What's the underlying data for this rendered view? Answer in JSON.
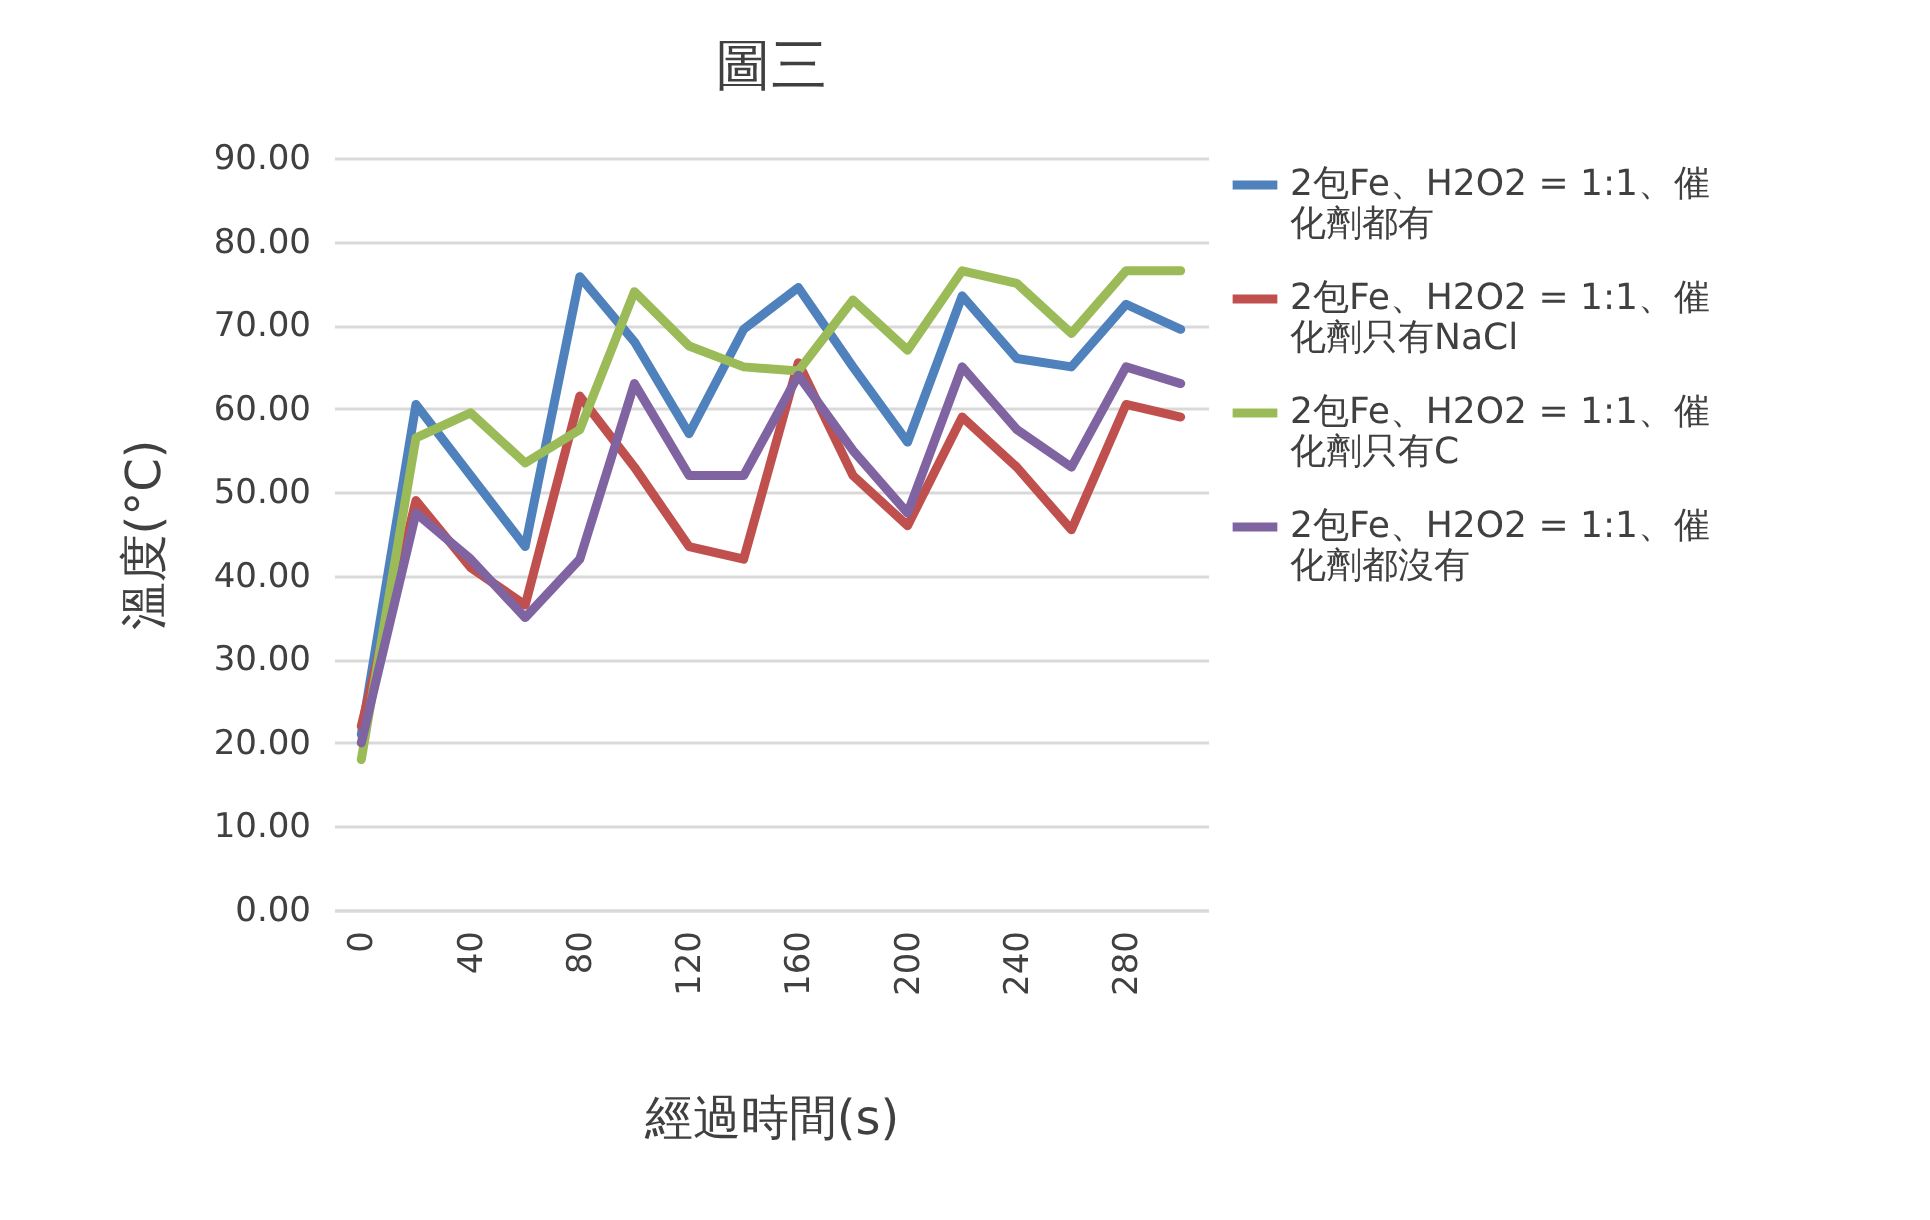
{
  "chart_data": {
    "type": "line",
    "title": "圖三",
    "xlabel": "經過時間(s)",
    "ylabel": "溫度(°C)",
    "categories": [
      "0",
      null,
      "40",
      null,
      "80",
      null,
      "120",
      null,
      "160",
      null,
      "200",
      null,
      "240",
      null,
      "280",
      null
    ],
    "series": [
      {
        "name": "2包Fe、H2O2 = 1:1、催化劑都有",
        "color": "#4f81bd",
        "values": [
          21,
          60.5,
          52,
          43.5,
          75.8,
          68,
          57,
          69.5,
          74.5,
          65,
          56,
          73.5,
          66,
          65,
          72.5,
          69.5
        ]
      },
      {
        "name": "2包Fe、H2O2 = 1:1、催化劑只有NaCl",
        "color": "#c0504d",
        "values": [
          22,
          49,
          41,
          36.5,
          61.5,
          53,
          43.5,
          42,
          65.5,
          52,
          46,
          59,
          53,
          45.5,
          60.5,
          59
        ]
      },
      {
        "name": "2包Fe、H2O2 = 1:1、催化劑只有C",
        "color": "#9bbb59",
        "values": [
          18,
          56.5,
          59.5,
          53.5,
          57.5,
          74,
          67.5,
          65,
          64.5,
          73,
          67,
          76.5,
          75,
          69,
          76.5,
          76.5
        ]
      },
      {
        "name": "2包Fe、H2O2 = 1:1、催化劑都沒有",
        "color": "#8064a2",
        "values": [
          20,
          47.5,
          42,
          35,
          42,
          63,
          52,
          52,
          64,
          55,
          47.5,
          65,
          57.5,
          53,
          65,
          63
        ]
      }
    ],
    "ylim": [
      0,
      90
    ],
    "yticks": [
      {
        "value": 0,
        "label": "0.00"
      },
      {
        "value": 10,
        "label": "10.00"
      },
      {
        "value": 20,
        "label": "20.00"
      },
      {
        "value": 30,
        "label": "30.00"
      },
      {
        "value": 40,
        "label": "40.00"
      },
      {
        "value": 50,
        "label": "50.00"
      },
      {
        "value": 60,
        "label": "60.00"
      },
      {
        "value": 70,
        "label": "70.00"
      },
      {
        "value": 80,
        "label": "80.00"
      },
      {
        "value": 90,
        "label": "90.00"
      }
    ],
    "grid": "y",
    "legend": "right",
    "marker": "none",
    "line_style": "solid"
  }
}
